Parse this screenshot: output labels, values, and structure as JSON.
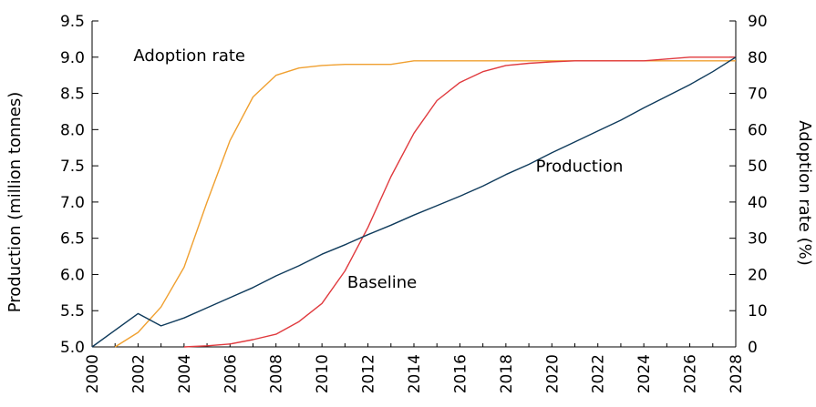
{
  "chart_data": {
    "type": "line",
    "title": "",
    "x": [
      2000,
      2001,
      2002,
      2003,
      2004,
      2005,
      2006,
      2007,
      2008,
      2009,
      2010,
      2011,
      2012,
      2013,
      2014,
      2015,
      2016,
      2017,
      2018,
      2019,
      2020,
      2021,
      2022,
      2023,
      2024,
      2025,
      2026,
      2027,
      2028
    ],
    "xlim": [
      2000,
      2028
    ],
    "xticks": [
      "2000",
      "2002",
      "2004",
      "2006",
      "2008",
      "2010",
      "2012",
      "2014",
      "2016",
      "2018",
      "2020",
      "2022",
      "2024",
      "2026",
      "2028"
    ],
    "y_left": {
      "label": "Production (million tonnes)",
      "lim": [
        5.0,
        9.5
      ],
      "ticks": [
        "5.0",
        "5.5",
        "6.0",
        "6.5",
        "7.0",
        "7.5",
        "8.0",
        "8.5",
        "9.0",
        "9.5"
      ]
    },
    "y_right": {
      "label": "Adoption rate (%)",
      "lim": [
        0,
        90
      ],
      "ticks": [
        "0",
        "10",
        "20",
        "30",
        "40",
        "50",
        "60",
        "70",
        "80",
        "90"
      ]
    },
    "grid": false,
    "series": [
      {
        "name": "Adoption rate",
        "axis": "right",
        "color": "#f0a030",
        "x": [
          2001,
          2002,
          2003,
          2004,
          2005,
          2006,
          2007,
          2008,
          2009,
          2010,
          2011,
          2012,
          2013,
          2014,
          2015,
          2016,
          2017,
          2018,
          2019,
          2020,
          2021,
          2022,
          2023,
          2024,
          2025,
          2026,
          2027,
          2028
        ],
        "values": [
          0,
          4,
          11,
          22,
          40,
          57,
          69,
          75,
          77,
          77.7,
          78,
          78,
          78,
          79,
          79,
          79,
          79,
          79,
          79,
          79,
          79,
          79,
          79,
          79,
          79,
          79,
          79,
          79
        ]
      },
      {
        "name": "Baseline",
        "axis": "right",
        "color": "#e03a3e",
        "x": [
          2004,
          2005,
          2006,
          2007,
          2008,
          2009,
          2010,
          2011,
          2012,
          2013,
          2014,
          2015,
          2016,
          2017,
          2018,
          2019,
          2020,
          2021,
          2022,
          2023,
          2024,
          2025,
          2026,
          2027,
          2028
        ],
        "values": [
          0,
          0.3,
          0.8,
          2,
          3.5,
          7,
          12,
          21,
          33,
          47,
          59,
          68,
          73,
          76,
          77.7,
          78.3,
          78.7,
          79,
          79,
          79,
          79,
          79.5,
          80,
          80,
          80
        ]
      },
      {
        "name": "Production",
        "axis": "left",
        "color": "#0e3a5b",
        "x": [
          2000,
          2001,
          2002,
          2003,
          2004,
          2005,
          2006,
          2007,
          2008,
          2009,
          2010,
          2011,
          2012,
          2013,
          2014,
          2015,
          2016,
          2017,
          2018,
          2019,
          2020,
          2021,
          2022,
          2023,
          2024,
          2025,
          2026,
          2027,
          2028
        ],
        "values": [
          5.0,
          5.23,
          5.46,
          5.29,
          5.4,
          5.54,
          5.68,
          5.82,
          5.98,
          6.12,
          6.28,
          6.41,
          6.55,
          6.68,
          6.82,
          6.95,
          7.08,
          7.22,
          7.38,
          7.52,
          7.68,
          7.83,
          7.98,
          8.13,
          8.3,
          8.46,
          8.62,
          8.8,
          9.0
        ]
      }
    ],
    "annotations": [
      {
        "text": "Adoption rate",
        "x": 2001.8,
        "y_left": 8.95
      },
      {
        "text": "Production",
        "x": 2019.3,
        "y_left": 7.42
      },
      {
        "text": "Baseline",
        "x": 2011.1,
        "y_left": 5.82
      }
    ]
  }
}
